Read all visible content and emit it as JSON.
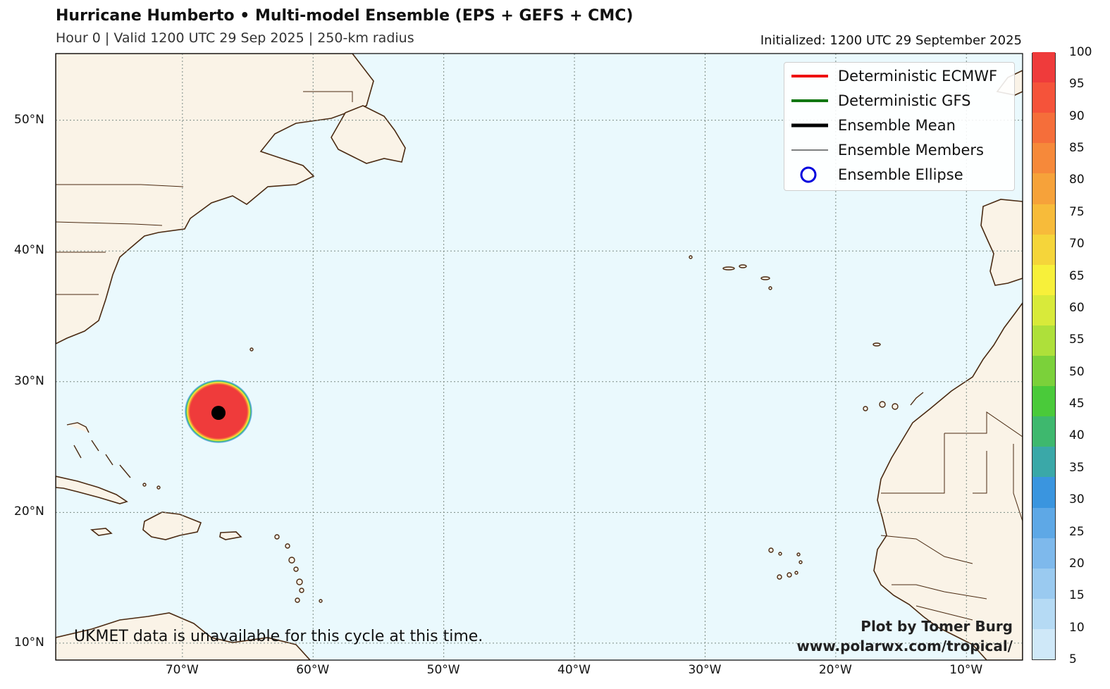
{
  "header": {
    "title": "Hurricane Humberto • Multi-model Ensemble (EPS + GEFS + CMC)",
    "subtitle": "Hour 0 | Valid 1200 UTC 29 Sep 2025 | 250-km radius",
    "initialized": "Initialized: 1200 UTC 29 September 2025"
  },
  "map": {
    "ocean_color": "#eaf9fd",
    "land_color": "#faf3e7",
    "coast_color": "#4a2a12",
    "extent": {
      "lon_min": -79.7,
      "lon_max": -5.7,
      "lat_min": 8.7,
      "lat_max": 55.1
    },
    "lat_labels": [
      "10°N",
      "20°N",
      "30°N",
      "40°N",
      "50°N"
    ],
    "lat_values": [
      10,
      20,
      30,
      40,
      50
    ],
    "lon_labels": [
      "70°W",
      "60°W",
      "50°W",
      "40°W",
      "30°W",
      "20°W",
      "10°W"
    ],
    "lon_values": [
      -70,
      -60,
      -50,
      -40,
      -30,
      -20,
      -10
    ],
    "storm": {
      "lat": 27.5,
      "lon": -67.3,
      "probability_center": 100,
      "radius_km": 250
    }
  },
  "legend": {
    "items": [
      {
        "label": "Deterministic ECMWF",
        "symbol": "line",
        "color": "#ee1111",
        "width": 4
      },
      {
        "label": "Deterministic GFS",
        "symbol": "line",
        "color": "#117711",
        "width": 4
      },
      {
        "label": "Ensemble Mean",
        "symbol": "line",
        "color": "#000000",
        "width": 5
      },
      {
        "label": "Ensemble Members",
        "symbol": "line",
        "color": "#000000",
        "width": 1
      },
      {
        "label": "Ensemble Ellipse",
        "symbol": "circle",
        "color": "#0000dd",
        "width": 3
      }
    ]
  },
  "colorbar": {
    "labels": [
      "5",
      "10",
      "15",
      "20",
      "25",
      "30",
      "35",
      "40",
      "45",
      "50",
      "55",
      "60",
      "65",
      "70",
      "75",
      "80",
      "85",
      "90",
      "95",
      "100"
    ],
    "colors": [
      "#cfe8f8",
      "#b5daf4",
      "#9acaf0",
      "#7eb9ec",
      "#5ea8e6",
      "#3a95df",
      "#3aa8a8",
      "#3eb86e",
      "#4aca3a",
      "#7bd13a",
      "#aee03a",
      "#d8ea3a",
      "#f7f03a",
      "#f5d53a",
      "#f7bb3a",
      "#f6a23a",
      "#f6893a",
      "#f56e3a",
      "#f5533a",
      "#ef3b3b"
    ]
  },
  "footer": {
    "note": "UKMET data is unavailable for this cycle at this time.",
    "credit_line1": "Plot by Tomer Burg",
    "credit_line2": "www.polarwx.com/tropical/"
  }
}
